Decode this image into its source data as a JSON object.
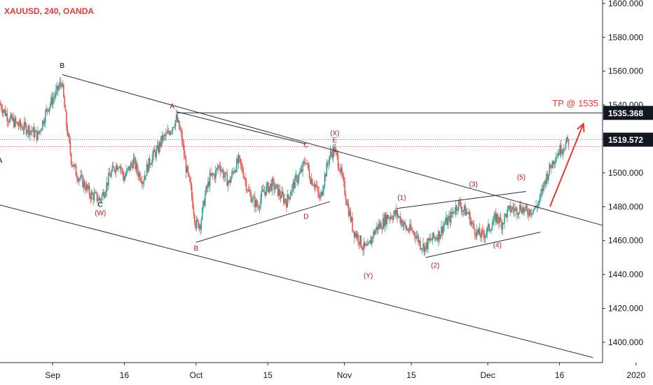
{
  "chart_data": {
    "type": "candlestick",
    "title": "XAUUSD, 240, OANDA",
    "x_ticks": [
      "Sep",
      "16",
      "Oct",
      "15",
      "Nov",
      "15",
      "Dec",
      "16",
      "2020"
    ],
    "y_ticks": [
      "1400.000",
      "1420.000",
      "1440.000",
      "1460.000",
      "1480.000",
      "1500.000",
      "1520.000",
      "1540.000",
      "1560.000",
      "1580.000",
      "1600.000"
    ],
    "ylim": [
      1388,
      1602
    ],
    "x_range_days": [
      -11,
      115
    ],
    "colors": {
      "up": "#26a69a",
      "down": "#ef5350",
      "label_red": "#b71c1c",
      "arrow": "#e53935",
      "line": "#2a2e39"
    },
    "price_tags": [
      {
        "value": "1535.368",
        "price": 1535.368,
        "style": "dark"
      },
      {
        "value": "1519.572",
        "price": 1519.572,
        "style": "dark"
      }
    ],
    "target_label": "TP @ 1535",
    "reference_lines": [
      {
        "price": 1519.572,
        "style": "dotted",
        "color": "#26a69a"
      },
      {
        "price": 1515.5,
        "style": "dotted",
        "color": "#ef5350"
      }
    ],
    "wave_labels": [
      {
        "text": "B",
        "day": 2,
        "price": 1562,
        "color": "dark"
      },
      {
        "text": "A",
        "day": -11,
        "price": 1506,
        "color": "dark"
      },
      {
        "text": "C",
        "day": 10,
        "price": 1480,
        "color": "dark"
      },
      {
        "text": "(W)",
        "day": 10,
        "price": 1475,
        "color": "red"
      },
      {
        "text": "A",
        "day": 25,
        "price": 1538,
        "color": "red"
      },
      {
        "text": "B",
        "day": 30,
        "price": 1454,
        "color": "red"
      },
      {
        "text": "C",
        "day": 53,
        "price": 1515,
        "color": "red"
      },
      {
        "text": "D",
        "day": 53,
        "price": 1473,
        "color": "red"
      },
      {
        "text": "(X)",
        "day": 59,
        "price": 1522,
        "color": "red"
      },
      {
        "text": "E",
        "day": 59,
        "price": 1518,
        "color": "red"
      },
      {
        "text": "(Y)",
        "day": 66,
        "price": 1438,
        "color": "red"
      },
      {
        "text": "(1)",
        "day": 73,
        "price": 1484,
        "color": "red"
      },
      {
        "text": "(2)",
        "day": 80,
        "price": 1444,
        "color": "red"
      },
      {
        "text": "(3)",
        "day": 88,
        "price": 1492,
        "color": "red"
      },
      {
        "text": "(4)",
        "day": 93,
        "price": 1456,
        "color": "red"
      },
      {
        "text": "(5)",
        "day": 98,
        "price": 1496,
        "color": "red"
      }
    ],
    "trend_lines": [
      {
        "from": [
          2,
          1558
        ],
        "to": [
          115,
          1469
        ]
      },
      {
        "from": [
          -11,
          1481
        ],
        "to": [
          113,
          1391
        ]
      },
      {
        "from": [
          26,
          1536
        ],
        "to": [
          53,
          1517
        ]
      },
      {
        "from": [
          30,
          1459
        ],
        "to": [
          58,
          1483
        ]
      },
      {
        "from": [
          72,
          1479
        ],
        "to": [
          99,
          1489
        ]
      },
      {
        "from": [
          78,
          1450
        ],
        "to": [
          102,
          1465
        ]
      },
      {
        "from": [
          26,
          1535.368
        ],
        "to": [
          115,
          1535.368
        ]
      }
    ],
    "arrow": {
      "from": [
        104,
        1480
      ],
      "to": [
        111,
        1529
      ]
    },
    "price_path": [
      [
        -11,
        1541
      ],
      [
        -9,
        1532
      ],
      [
        -7,
        1528
      ],
      [
        -5,
        1526
      ],
      [
        -3,
        1522
      ],
      [
        -1,
        1538
      ],
      [
        1,
        1548
      ],
      [
        2,
        1554
      ],
      [
        3,
        1528
      ],
      [
        4,
        1508
      ],
      [
        5,
        1500
      ],
      [
        6,
        1496
      ],
      [
        7,
        1492
      ],
      [
        8,
        1487
      ],
      [
        9,
        1486
      ],
      [
        10,
        1484
      ],
      [
        11,
        1490
      ],
      [
        12,
        1498
      ],
      [
        13,
        1503
      ],
      [
        14,
        1506
      ],
      [
        15,
        1497
      ],
      [
        16,
        1502
      ],
      [
        17,
        1507
      ],
      [
        18,
        1500
      ],
      [
        19,
        1496
      ],
      [
        20,
        1504
      ],
      [
        21,
        1510
      ],
      [
        22,
        1513
      ],
      [
        23,
        1520
      ],
      [
        24,
        1522
      ],
      [
        25,
        1527
      ],
      [
        26,
        1532
      ],
      [
        27,
        1522
      ],
      [
        28,
        1503
      ],
      [
        29,
        1490
      ],
      [
        30,
        1470
      ],
      [
        31,
        1470
      ],
      [
        32,
        1487
      ],
      [
        33,
        1497
      ],
      [
        34,
        1499
      ],
      [
        35,
        1505
      ],
      [
        36,
        1498
      ],
      [
        37,
        1494
      ],
      [
        38,
        1502
      ],
      [
        39,
        1507
      ],
      [
        40,
        1500
      ],
      [
        41,
        1489
      ],
      [
        42,
        1484
      ],
      [
        43,
        1480
      ],
      [
        44,
        1488
      ],
      [
        45,
        1491
      ],
      [
        46,
        1493
      ],
      [
        47,
        1490
      ],
      [
        48,
        1486
      ],
      [
        49,
        1483
      ],
      [
        50,
        1490
      ],
      [
        51,
        1496
      ],
      [
        52,
        1500
      ],
      [
        53,
        1508
      ],
      [
        54,
        1497
      ],
      [
        55,
        1493
      ],
      [
        56,
        1484
      ],
      [
        57,
        1498
      ],
      [
        58,
        1510
      ],
      [
        59,
        1514
      ],
      [
        60,
        1505
      ],
      [
        61,
        1492
      ],
      [
        62,
        1478
      ],
      [
        63,
        1466
      ],
      [
        64,
        1462
      ],
      [
        65,
        1456
      ],
      [
        66,
        1455
      ],
      [
        67,
        1463
      ],
      [
        68,
        1468
      ],
      [
        69,
        1470
      ],
      [
        70,
        1474
      ],
      [
        71,
        1475
      ],
      [
        72,
        1476
      ],
      [
        73,
        1472
      ],
      [
        74,
        1467
      ],
      [
        75,
        1466
      ],
      [
        76,
        1464
      ],
      [
        77,
        1458
      ],
      [
        78,
        1456
      ],
      [
        79,
        1460
      ],
      [
        80,
        1462
      ],
      [
        81,
        1464
      ],
      [
        82,
        1470
      ],
      [
        83,
        1472
      ],
      [
        84,
        1478
      ],
      [
        85,
        1482
      ],
      [
        86,
        1478
      ],
      [
        87,
        1476
      ],
      [
        88,
        1468
      ],
      [
        89,
        1464
      ],
      [
        90,
        1463
      ],
      [
        91,
        1466
      ],
      [
        92,
        1470
      ],
      [
        93,
        1474
      ],
      [
        94,
        1470
      ],
      [
        95,
        1476
      ],
      [
        96,
        1479
      ],
      [
        97,
        1478
      ],
      [
        98,
        1480
      ],
      [
        99,
        1477
      ],
      [
        100,
        1478
      ],
      [
        101,
        1479
      ],
      [
        102,
        1484
      ],
      [
        103,
        1495
      ],
      [
        104,
        1502
      ],
      [
        105,
        1509
      ],
      [
        106,
        1513
      ],
      [
        107,
        1516
      ],
      [
        108,
        1519
      ]
    ]
  }
}
